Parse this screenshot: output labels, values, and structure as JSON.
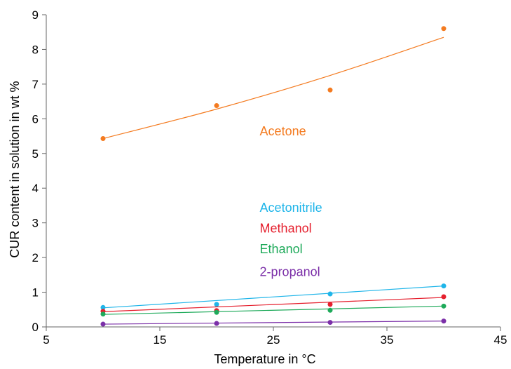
{
  "chart_data": {
    "type": "scatter",
    "xlabel": "Temperature in °C",
    "ylabel": "CUR content in solution in wt %",
    "xlim": [
      5,
      45
    ],
    "ylim": [
      0,
      9
    ],
    "xticks": [
      5,
      15,
      25,
      35,
      45
    ],
    "yticks": [
      0,
      1,
      2,
      3,
      4,
      5,
      6,
      7,
      8,
      9
    ],
    "grid": false,
    "legend": "inline labels",
    "series": [
      {
        "name": "Acetone",
        "color": "#F47B20",
        "x": [
          10,
          20,
          30,
          40
        ],
        "y": [
          5.43,
          6.38,
          6.83,
          8.6
        ],
        "trend": {
          "x": [
            10,
            20,
            30,
            40
          ],
          "y": [
            5.43,
            6.28,
            7.25,
            8.35
          ]
        }
      },
      {
        "name": "Acetonitrile",
        "color": "#1FB5E9",
        "x": [
          10,
          20,
          30,
          40
        ],
        "y": [
          0.56,
          0.65,
          0.95,
          1.18
        ],
        "trend": {
          "x": [
            10,
            40
          ],
          "y": [
            0.55,
            1.18
          ]
        }
      },
      {
        "name": "Methanol",
        "color": "#E5202E",
        "x": [
          10,
          20,
          30,
          40
        ],
        "y": [
          0.45,
          0.47,
          0.65,
          0.87
        ],
        "trend": {
          "x": [
            10,
            40
          ],
          "y": [
            0.44,
            0.85
          ]
        }
      },
      {
        "name": "Ethanol",
        "color": "#1EAA5A",
        "x": [
          10,
          20,
          30,
          40
        ],
        "y": [
          0.37,
          0.42,
          0.48,
          0.6
        ],
        "trend": {
          "x": [
            10,
            40
          ],
          "y": [
            0.36,
            0.6
          ]
        }
      },
      {
        "name": "2-propanol",
        "color": "#7B2FA8",
        "x": [
          10,
          20,
          30,
          40
        ],
        "y": [
          0.08,
          0.1,
          0.13,
          0.17
        ],
        "trend": {
          "x": [
            10,
            40
          ],
          "y": [
            0.08,
            0.17
          ]
        }
      }
    ]
  }
}
